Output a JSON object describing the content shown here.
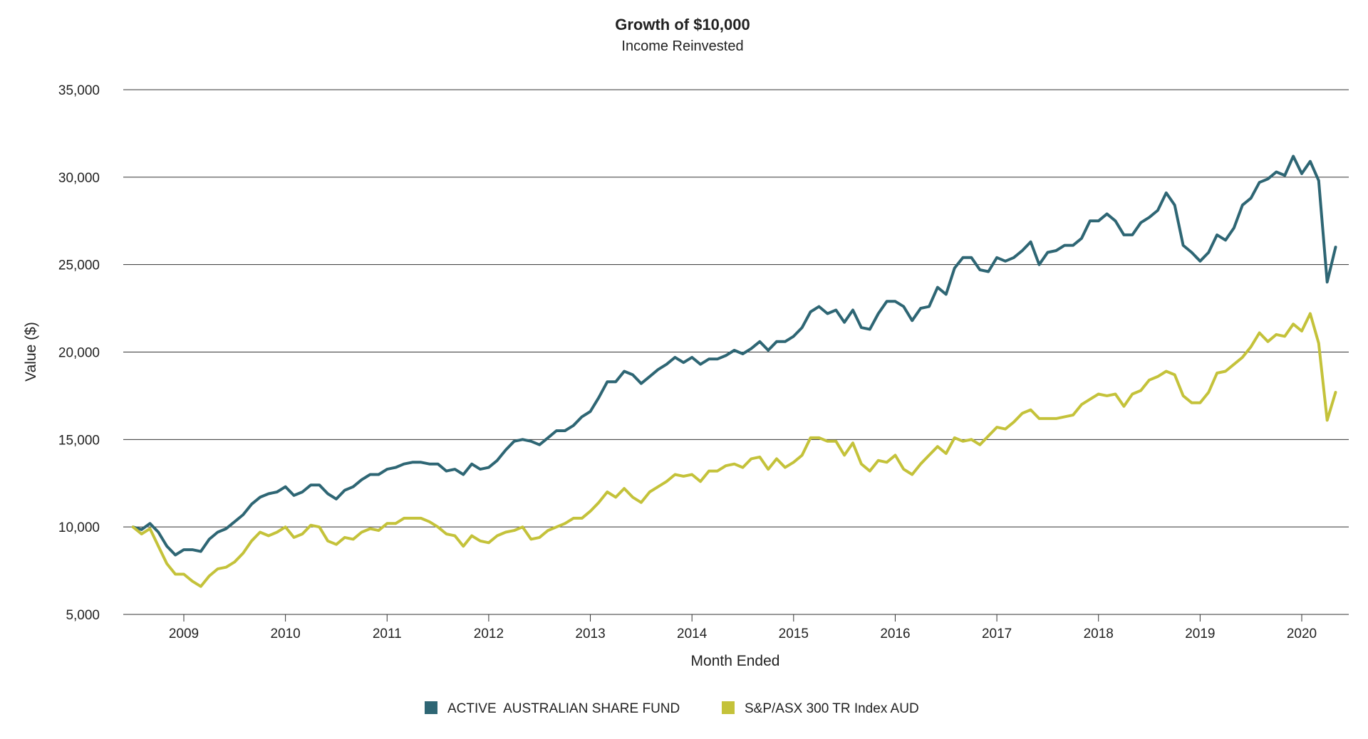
{
  "chart_data": {
    "type": "line",
    "title": "Growth of $10,000",
    "subtitle": "Income Reinvested",
    "xlabel": "Month Ended",
    "ylabel": "Value ($)",
    "ylim": [
      5000,
      35000
    ],
    "y_ticks": [
      5000,
      10000,
      15000,
      20000,
      25000,
      30000,
      35000
    ],
    "y_tick_labels": [
      "5,000",
      "10,000",
      "15,000",
      "20,000",
      "25,000",
      "30,000",
      "35,000"
    ],
    "x_ticks": [
      2009,
      2010,
      2011,
      2012,
      2013,
      2014,
      2015,
      2016,
      2017,
      2018,
      2019,
      2020
    ],
    "x_tick_labels": [
      "2009",
      "2010",
      "2011",
      "2012",
      "2013",
      "2014",
      "2015",
      "2016",
      "2017",
      "2018",
      "2019",
      "2020"
    ],
    "grid": true,
    "legend_position": "bottom-center",
    "x_start": "2008-07",
    "x_step": "1 month",
    "series": [
      {
        "name": "ACTIVE  AUSTRALIAN SHARE FUND",
        "color": "#2e6674",
        "values": [
          10000,
          9850,
          10200,
          9700,
          8900,
          8400,
          8700,
          8700,
          8600,
          9300,
          9700,
          9900,
          10300,
          10700,
          11300,
          11700,
          11900,
          12000,
          12300,
          11800,
          12000,
          12400,
          12400,
          11900,
          11600,
          12100,
          12300,
          12700,
          13000,
          13000,
          13300,
          13400,
          13600,
          13700,
          13700,
          13600,
          13600,
          13200,
          13300,
          13000,
          13600,
          13300,
          13400,
          13800,
          14400,
          14900,
          15000,
          14900,
          14700,
          15100,
          15500,
          15500,
          15800,
          16300,
          16600,
          17400,
          18300,
          18300,
          18900,
          18700,
          18200,
          18600,
          19000,
          19300,
          19700,
          19400,
          19700,
          19300,
          19600,
          19600,
          19800,
          20100,
          19900,
          20200,
          20600,
          20100,
          20600,
          20600,
          20900,
          21400,
          22300,
          22600,
          22200,
          22400,
          21700,
          22400,
          21400,
          21300,
          22200,
          22900,
          22900,
          22600,
          21800,
          22500,
          22600,
          23700,
          23300,
          24800,
          25400,
          25400,
          24700,
          24600,
          25400,
          25200,
          25400,
          25800,
          26300,
          25000,
          25700,
          25800,
          26100,
          26100,
          26500,
          27500,
          27500,
          27900,
          27500,
          26700,
          26700,
          27400,
          27700,
          28100,
          29100,
          28400,
          26100,
          25700,
          25200,
          25700,
          26700,
          26400,
          27100,
          28400,
          28800,
          29700,
          29900,
          30300,
          30100,
          31200,
          30200,
          30900,
          29800,
          24000,
          26000
        ]
      },
      {
        "name": "S&P/ASX 300 TR Index AUD",
        "color": "#c4c23a",
        "values": [
          10000,
          9600,
          9900,
          8900,
          7900,
          7300,
          7300,
          6900,
          6600,
          7200,
          7600,
          7700,
          8000,
          8500,
          9200,
          9700,
          9500,
          9700,
          10000,
          9400,
          9600,
          10100,
          10000,
          9200,
          9000,
          9400,
          9300,
          9700,
          9900,
          9800,
          10200,
          10200,
          10500,
          10500,
          10500,
          10300,
          10000,
          9600,
          9500,
          8900,
          9500,
          9200,
          9100,
          9500,
          9700,
          9800,
          10000,
          9300,
          9400,
          9800,
          10000,
          10200,
          10500,
          10500,
          10900,
          11400,
          12000,
          11700,
          12200,
          11700,
          11400,
          12000,
          12300,
          12600,
          13000,
          12900,
          13000,
          12600,
          13200,
          13200,
          13500,
          13600,
          13400,
          13900,
          14000,
          13300,
          13900,
          13400,
          13700,
          14100,
          15100,
          15100,
          14900,
          14900,
          14100,
          14800,
          13600,
          13200,
          13800,
          13700,
          14100,
          13300,
          13000,
          13600,
          14100,
          14600,
          14200,
          15100,
          14900,
          15000,
          14700,
          15200,
          15700,
          15600,
          16000,
          16500,
          16700,
          16200,
          16200,
          16200,
          16300,
          16400,
          17000,
          17300,
          17600,
          17500,
          17600,
          16900,
          17600,
          17800,
          18400,
          18600,
          18900,
          18700,
          17500,
          17100,
          17100,
          17700,
          18800,
          18900,
          19300,
          19700,
          20300,
          21100,
          20600,
          21000,
          20900,
          21600,
          21200,
          22200,
          20500,
          16100,
          17700
        ]
      }
    ]
  }
}
